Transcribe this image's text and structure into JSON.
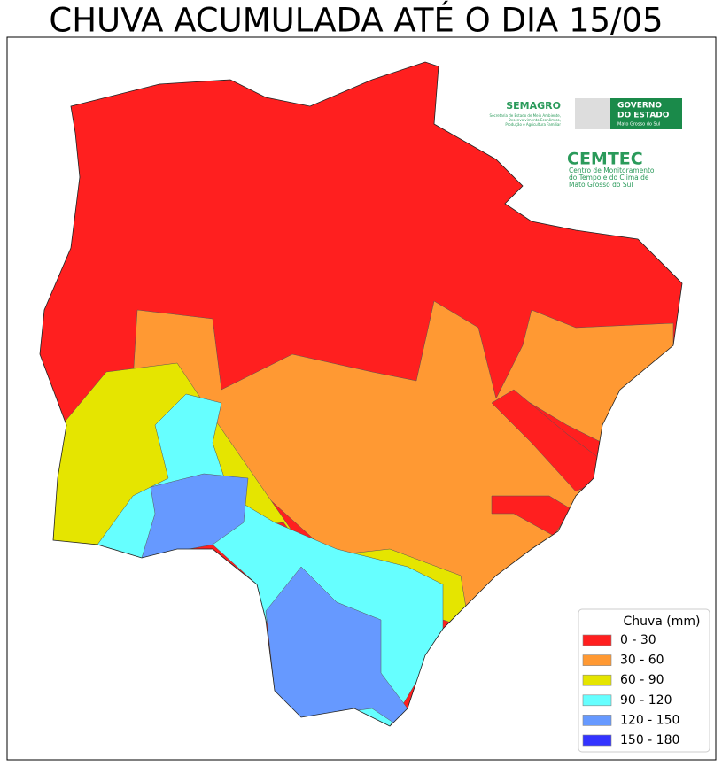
{
  "title": "CHUVA ACUMULADA ATÉ O DIA 15/05",
  "legend": {
    "title": "Chuva (mm)",
    "items": [
      {
        "label": "0 - 30",
        "color": "#ff1f1f"
      },
      {
        "label": "30 - 60",
        "color": "#ff9933"
      },
      {
        "label": "60 - 90",
        "color": "#e5e500"
      },
      {
        "label": "90 - 120",
        "color": "#66ffff"
      },
      {
        "label": "120 - 150",
        "color": "#6699ff"
      },
      {
        "label": "150 - 180",
        "color": "#3333ff"
      }
    ]
  },
  "logos": {
    "semagro": {
      "name": "SEMAGRO",
      "lines": [
        "Secretaria de Estado de Meio Ambiente,",
        "Desenvolvimento Econômico,",
        "Produção e Agricultura Familiar"
      ]
    },
    "governo": {
      "lines": [
        "GOVERNO",
        "DO ESTADO"
      ],
      "state": "Mato Grosso do Sul"
    },
    "cemtec": {
      "name": "CEMTEC",
      "lines": [
        "Centro de Monitoramento",
        "do Tempo e do Clima de",
        "Mato Grosso do Sul"
      ]
    }
  }
}
